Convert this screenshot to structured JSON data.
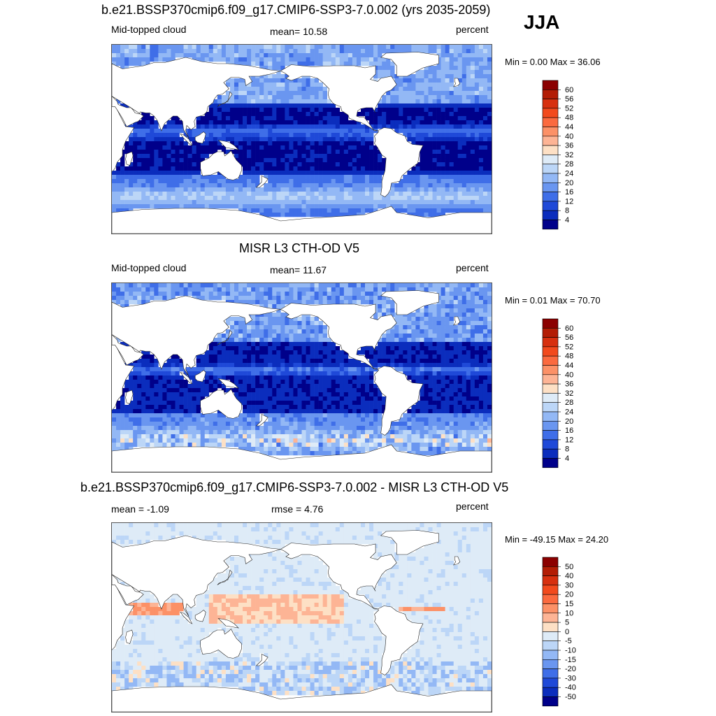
{
  "season": "JJA",
  "panels": [
    {
      "id": "model",
      "title": "b.e21.BSSP370cmip6.f09_g17.CMIP6-SSP3-7.0.002 (yrs 2035-2059)",
      "left_label": "Mid-topped cloud",
      "center_label": "mean=  10.58",
      "units": "percent",
      "minmax": "Min =   0.00 Max =  36.06",
      "colorbar_levels": [
        "60",
        "56",
        "52",
        "48",
        "44",
        "40",
        "36",
        "32",
        "28",
        "24",
        "20",
        "16",
        "12",
        "8",
        "4"
      ],
      "colorbar_colors": [
        "#8b0000",
        "#b31d05",
        "#d7300f",
        "#f24a1d",
        "#fb6a3f",
        "#fc9167",
        "#fdb495",
        "#fde0c5",
        "#deebf7",
        "#bcd6f7",
        "#93b8f5",
        "#6a96f0",
        "#3f6ee8",
        "#1f49d8",
        "#0b2dbd",
        "#00008a"
      ],
      "map_style": "model"
    },
    {
      "id": "obs",
      "title": "MISR L3 CTH-OD V5",
      "left_label": "Mid-topped cloud",
      "center_label": "mean=  11.67",
      "units": "percent",
      "minmax": "Min =   0.01 Max =  70.70",
      "colorbar_levels": [
        "60",
        "56",
        "52",
        "48",
        "44",
        "40",
        "36",
        "32",
        "28",
        "24",
        "20",
        "16",
        "12",
        "8",
        "4"
      ],
      "colorbar_colors": [
        "#8b0000",
        "#b31d05",
        "#d7300f",
        "#f24a1d",
        "#fb6a3f",
        "#fc9167",
        "#fdb495",
        "#fde0c5",
        "#deebf7",
        "#bcd6f7",
        "#93b8f5",
        "#6a96f0",
        "#3f6ee8",
        "#1f49d8",
        "#0b2dbd",
        "#00008a"
      ],
      "map_style": "obs"
    },
    {
      "id": "diff",
      "title": "b.e21.BSSP370cmip6.f09_g17.CMIP6-SSP3-7.0.002 - MISR L3 CTH-OD V5",
      "left_label": "mean =  -1.09",
      "center_label": "rmse =   4.76",
      "units": "percent",
      "minmax": "Min = -49.15 Max =  24.20",
      "colorbar_levels": [
        "50",
        "40",
        "30",
        "20",
        "15",
        "10",
        "5",
        "0",
        "-5",
        "-10",
        "-15",
        "-20",
        "-30",
        "-40",
        "-50"
      ],
      "colorbar_colors": [
        "#8b0000",
        "#b31d05",
        "#d7300f",
        "#f24a1d",
        "#fb6a3f",
        "#fc9167",
        "#fdb495",
        "#fde0c5",
        "#deebf7",
        "#bcd6f7",
        "#93b8f5",
        "#6a96f0",
        "#3f6ee8",
        "#1f49d8",
        "#0b2dbd",
        "#00008a"
      ],
      "map_style": "diff"
    }
  ]
}
